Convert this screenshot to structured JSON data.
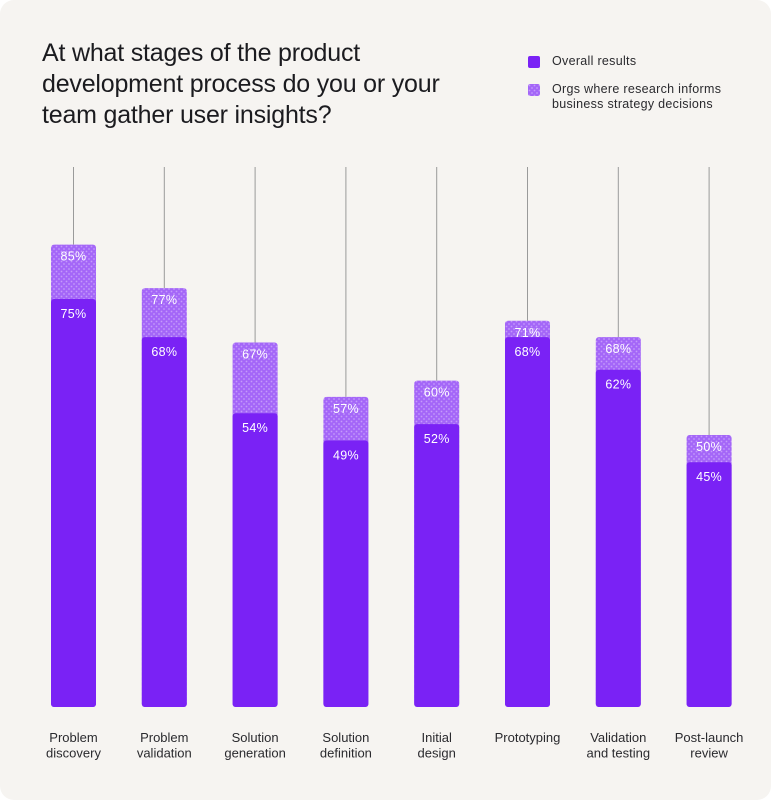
{
  "chart_data": {
    "type": "bar",
    "title": "At what stages of the product development process do you or your team gather user insights?",
    "categories": [
      [
        "Problem",
        "discovery"
      ],
      [
        "Problem",
        "validation"
      ],
      [
        "Solution",
        "generation"
      ],
      [
        "Solution",
        "definition"
      ],
      [
        "Initial",
        "design"
      ],
      [
        "Prototyping"
      ],
      [
        "Validation",
        "and testing"
      ],
      [
        "Post-launch",
        "review"
      ]
    ],
    "series": [
      {
        "name": "Overall results",
        "values": [
          75,
          68,
          54,
          49,
          52,
          68,
          62,
          45
        ],
        "value_labels": [
          "75%",
          "68%",
          "54%",
          "49%",
          "52%",
          "68%",
          "62%",
          "45%"
        ],
        "color": "#7a22f5",
        "pattern": "solid"
      },
      {
        "name": "Orgs where research informs business strategy decisions",
        "values": [
          85,
          77,
          67,
          57,
          60,
          71,
          68,
          50
        ],
        "value_labels": [
          "85%",
          "77%",
          "67%",
          "57%",
          "60%",
          "71%",
          "68%",
          "50%"
        ],
        "color": "#a466f8",
        "pattern": "dotted"
      }
    ],
    "ylim": [
      0,
      100
    ],
    "legend": "top-right",
    "grid": false
  }
}
